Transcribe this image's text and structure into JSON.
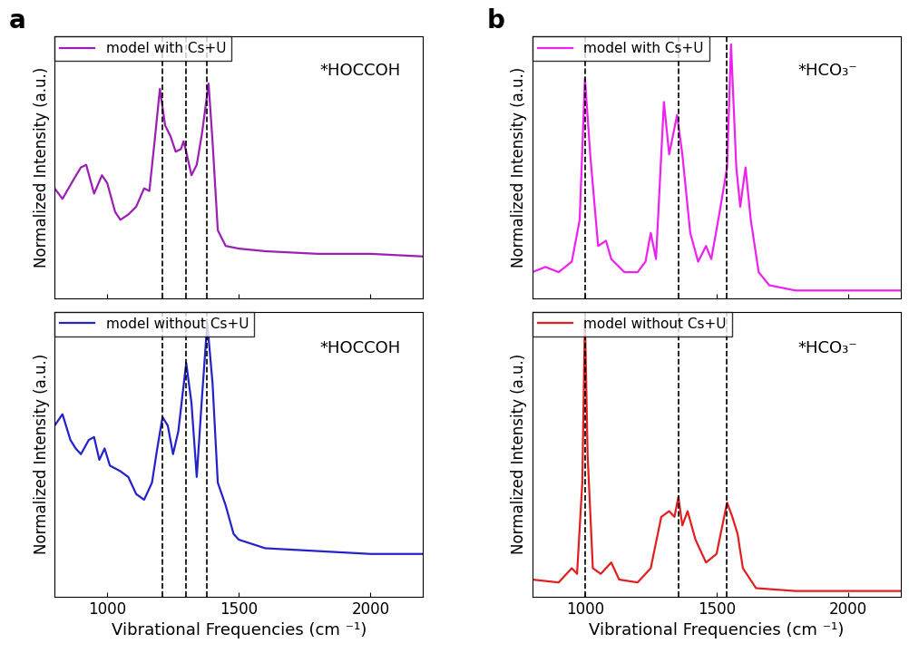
{
  "chart_data": [
    {
      "type": "line",
      "panel": "a",
      "annotation": "*HOCCOH",
      "ylabel": "Normalized Intensity (a.u.)",
      "xlim": [
        800,
        2200
      ],
      "xticks": [
        1000,
        1500,
        2000
      ],
      "ylim": [
        0,
        1
      ],
      "yticks": [],
      "tick_labels": false,
      "legend": "upper left",
      "reference_lines": [
        1210,
        1300,
        1380
      ],
      "series": [
        {
          "name": "model with Cs+U",
          "color": "#9b1fb5",
          "x": [
            800,
            830,
            870,
            900,
            920,
            950,
            980,
            1000,
            1030,
            1050,
            1080,
            1110,
            1140,
            1160,
            1180,
            1200,
            1220,
            1240,
            1260,
            1280,
            1290,
            1300,
            1320,
            1340,
            1360,
            1385,
            1400,
            1420,
            1450,
            1500,
            1600,
            1800,
            2000,
            2200
          ],
          "values": [
            0.42,
            0.38,
            0.45,
            0.5,
            0.51,
            0.4,
            0.47,
            0.44,
            0.33,
            0.3,
            0.32,
            0.35,
            0.42,
            0.41,
            0.6,
            0.8,
            0.66,
            0.62,
            0.56,
            0.57,
            0.6,
            0.56,
            0.47,
            0.51,
            0.63,
            0.82,
            0.6,
            0.26,
            0.2,
            0.19,
            0.18,
            0.17,
            0.17,
            0.16
          ]
        }
      ]
    },
    {
      "type": "line",
      "annotation": "*HOCCOH",
      "ylabel": "Normalized Intensity (a.u.)",
      "xlabel": "Vibrational Frequencies (cm ⁻¹)",
      "xlim": [
        800,
        2200
      ],
      "xticks": [
        1000,
        1500,
        2000
      ],
      "ylim": [
        0,
        1
      ],
      "yticks": [],
      "tick_labels": "x",
      "legend": "upper left",
      "reference_lines": [
        1210,
        1300,
        1380
      ],
      "series": [
        {
          "name": "model without Cs+U",
          "color": "#2323c8",
          "x": [
            800,
            830,
            860,
            880,
            900,
            930,
            950,
            970,
            990,
            1010,
            1050,
            1080,
            1110,
            1140,
            1170,
            1190,
            1210,
            1230,
            1250,
            1270,
            1300,
            1320,
            1340,
            1360,
            1380,
            1400,
            1420,
            1450,
            1480,
            1500,
            1600,
            1800,
            2000,
            2200
          ],
          "values": [
            0.6,
            0.64,
            0.55,
            0.52,
            0.5,
            0.55,
            0.56,
            0.48,
            0.52,
            0.46,
            0.44,
            0.42,
            0.36,
            0.34,
            0.4,
            0.52,
            0.63,
            0.6,
            0.5,
            0.58,
            0.82,
            0.68,
            0.42,
            0.7,
            0.96,
            0.75,
            0.4,
            0.32,
            0.22,
            0.2,
            0.17,
            0.16,
            0.15,
            0.15
          ]
        }
      ]
    },
    {
      "type": "line",
      "panel": "b",
      "annotation": "*HCO₃⁻",
      "ylabel": "Normalized Intensity (a.u.)",
      "xlim": [
        800,
        2200
      ],
      "xticks": [
        1000,
        1500,
        2000
      ],
      "ylim": [
        0,
        1
      ],
      "yticks": [],
      "tick_labels": false,
      "legend": "upper left",
      "reference_lines": [
        1000,
        1355,
        1540
      ],
      "series": [
        {
          "name": "model with Cs+U",
          "color": "#ee22ee",
          "x": [
            800,
            850,
            900,
            950,
            980,
            1000,
            1020,
            1050,
            1080,
            1100,
            1150,
            1200,
            1230,
            1250,
            1270,
            1300,
            1320,
            1350,
            1370,
            1400,
            1430,
            1460,
            1480,
            1510,
            1540,
            1555,
            1575,
            1590,
            1610,
            1630,
            1660,
            1700,
            1800,
            2000,
            2200
          ],
          "values": [
            0.1,
            0.12,
            0.1,
            0.14,
            0.3,
            0.84,
            0.55,
            0.2,
            0.22,
            0.15,
            0.1,
            0.1,
            0.14,
            0.25,
            0.15,
            0.75,
            0.55,
            0.7,
            0.55,
            0.25,
            0.14,
            0.2,
            0.15,
            0.32,
            0.5,
            0.97,
            0.5,
            0.35,
            0.5,
            0.3,
            0.1,
            0.05,
            0.03,
            0.03,
            0.03
          ]
        }
      ]
    },
    {
      "type": "line",
      "annotation": "*HCO₃⁻",
      "ylabel": "Normalized Intensity (a.u.)",
      "xlabel": "Vibrational Frequencies (cm ⁻¹)",
      "xlim": [
        800,
        2200
      ],
      "xticks": [
        1000,
        1500,
        2000
      ],
      "ylim": [
        0,
        1
      ],
      "yticks": [],
      "tick_labels": "x",
      "legend": "upper left",
      "reference_lines": [
        1000,
        1355,
        1540
      ],
      "series": [
        {
          "name": "model without Cs+U",
          "color": "#e02020",
          "x": [
            800,
            900,
            950,
            970,
            990,
            1000,
            1010,
            1030,
            1060,
            1100,
            1130,
            1200,
            1250,
            1290,
            1320,
            1340,
            1355,
            1370,
            1390,
            1420,
            1460,
            1500,
            1540,
            1560,
            1580,
            1600,
            1650,
            1800,
            2000,
            2200
          ],
          "values": [
            0.06,
            0.05,
            0.1,
            0.08,
            0.4,
            0.98,
            0.5,
            0.1,
            0.08,
            0.12,
            0.06,
            0.05,
            0.1,
            0.28,
            0.3,
            0.28,
            0.35,
            0.25,
            0.3,
            0.2,
            0.12,
            0.15,
            0.33,
            0.28,
            0.22,
            0.1,
            0.03,
            0.02,
            0.02,
            0.02
          ]
        }
      ]
    }
  ]
}
